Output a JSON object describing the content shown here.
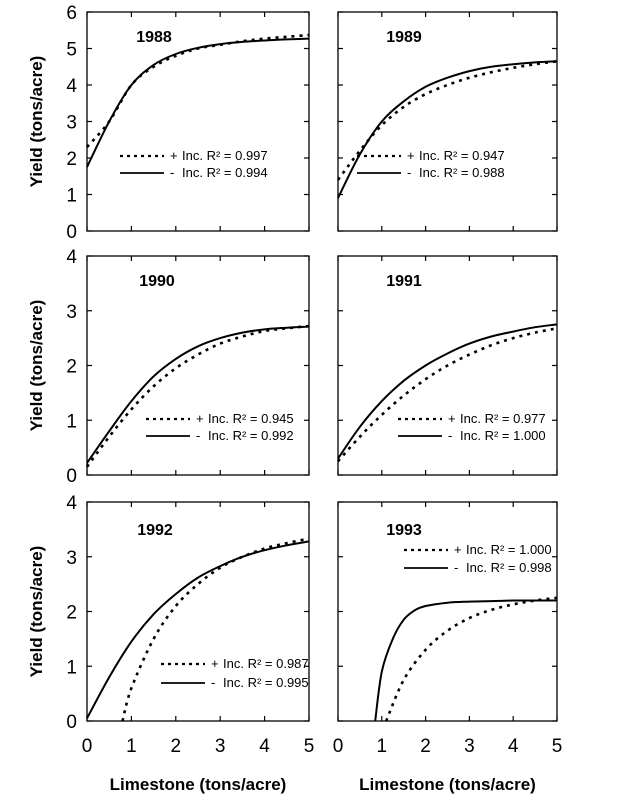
{
  "chart_data": [
    {
      "type": "line",
      "title": "1988",
      "xlim": [
        0,
        5
      ],
      "ylim": [
        0,
        6
      ],
      "xticks": [
        0,
        1,
        2,
        3,
        4,
        5
      ],
      "yticks": [
        0,
        1,
        2,
        3,
        4,
        5,
        6
      ],
      "ylabel": "Yield (tons/acre)",
      "xlabel": "",
      "series": [
        {
          "name": "+ Inc. R² = 0.997",
          "style": "dotted",
          "x": [
            0,
            0.5,
            1,
            1.5,
            2,
            2.5,
            3,
            3.5,
            4,
            4.5,
            5
          ],
          "y": [
            2.3,
            3.0,
            4.0,
            4.5,
            4.8,
            5.0,
            5.1,
            5.2,
            5.27,
            5.32,
            5.37
          ]
        },
        {
          "name": "- Inc. R² = 0.994",
          "style": "solid",
          "x": [
            0,
            0.5,
            1,
            1.5,
            2,
            2.5,
            3,
            3.5,
            4,
            4.5,
            5
          ],
          "y": [
            1.75,
            3.0,
            4.0,
            4.55,
            4.85,
            5.02,
            5.12,
            5.18,
            5.22,
            5.25,
            5.27
          ]
        }
      ],
      "legend": [
        {
          "sym": "+",
          "label": "Inc. R² = 0.997"
        },
        {
          "sym": "-",
          "label": "Inc. R² = 0.994"
        }
      ]
    },
    {
      "type": "line",
      "title": "1989",
      "xlim": [
        0,
        5
      ],
      "ylim": [
        0,
        6
      ],
      "xticks": [
        0,
        1,
        2,
        3,
        4,
        5
      ],
      "yticks": [
        0,
        1,
        2,
        3,
        4,
        5,
        6
      ],
      "ylabel": "",
      "xlabel": "",
      "series": [
        {
          "name": "+ Inc. R² = 0.947",
          "style": "dotted",
          "x": [
            0,
            0.5,
            1,
            1.5,
            2,
            2.5,
            3,
            3.5,
            4,
            4.5,
            5
          ],
          "y": [
            1.4,
            2.2,
            2.9,
            3.4,
            3.75,
            4.0,
            4.2,
            4.35,
            4.47,
            4.57,
            4.65
          ]
        },
        {
          "name": "- Inc. R² = 0.988",
          "style": "solid",
          "x": [
            0,
            0.5,
            1,
            1.5,
            2,
            2.5,
            3,
            3.5,
            4,
            4.5,
            5
          ],
          "y": [
            0.9,
            2.1,
            3.0,
            3.55,
            3.95,
            4.2,
            4.38,
            4.5,
            4.57,
            4.62,
            4.65
          ]
        }
      ],
      "legend": [
        {
          "sym": "+",
          "label": "Inc. R² = 0.947"
        },
        {
          "sym": "-",
          "label": "Inc. R² = 0.988"
        }
      ]
    },
    {
      "type": "line",
      "title": "1990",
      "xlim": [
        0,
        5
      ],
      "ylim": [
        0,
        4
      ],
      "xticks": [
        0,
        1,
        2,
        3,
        4,
        5
      ],
      "yticks": [
        0,
        1,
        2,
        3,
        4
      ],
      "ylabel": "Yield (tons/acre)",
      "xlabel": "",
      "series": [
        {
          "name": "+ Inc. R² = 0.945",
          "style": "dotted",
          "x": [
            0,
            0.5,
            1,
            1.5,
            2,
            2.5,
            3,
            3.5,
            4,
            4.5,
            5
          ],
          "y": [
            0.15,
            0.7,
            1.2,
            1.62,
            1.95,
            2.2,
            2.4,
            2.53,
            2.63,
            2.68,
            2.72
          ]
        },
        {
          "name": "- Inc. R² = 0.992",
          "style": "solid",
          "x": [
            0,
            0.5,
            1,
            1.5,
            2,
            2.5,
            3,
            3.5,
            4,
            4.5,
            5
          ],
          "y": [
            0.22,
            0.8,
            1.35,
            1.8,
            2.12,
            2.35,
            2.5,
            2.6,
            2.66,
            2.69,
            2.71
          ]
        }
      ],
      "legend": [
        {
          "sym": "+",
          "label": "Inc. R² = 0.945"
        },
        {
          "sym": "-",
          "label": "Inc. R² = 0.992"
        }
      ]
    },
    {
      "type": "line",
      "title": "1991",
      "xlim": [
        0,
        5
      ],
      "ylim": [
        0,
        4
      ],
      "xticks": [
        0,
        1,
        2,
        3,
        4,
        5
      ],
      "yticks": [
        0,
        1,
        2,
        3,
        4
      ],
      "ylabel": "",
      "xlabel": "",
      "series": [
        {
          "name": "+ Inc. R² = 0.977",
          "style": "dotted",
          "x": [
            0,
            0.5,
            1,
            1.5,
            2,
            2.5,
            3,
            3.5,
            4,
            4.5,
            5
          ],
          "y": [
            0.25,
            0.7,
            1.1,
            1.45,
            1.75,
            2.0,
            2.2,
            2.37,
            2.5,
            2.6,
            2.68
          ]
        },
        {
          "name": "- Inc. R² = 1.000",
          "style": "solid",
          "x": [
            0,
            0.5,
            1,
            1.5,
            2,
            2.5,
            3,
            3.5,
            4,
            4.5,
            5
          ],
          "y": [
            0.3,
            0.88,
            1.35,
            1.72,
            2.0,
            2.22,
            2.4,
            2.53,
            2.62,
            2.7,
            2.75
          ]
        }
      ],
      "legend": [
        {
          "sym": "+",
          "label": "Inc. R² = 0.977"
        },
        {
          "sym": "-",
          "label": "Inc. R² = 1.000"
        }
      ]
    },
    {
      "type": "line",
      "title": "1992",
      "xlim": [
        0,
        5
      ],
      "ylim": [
        0,
        4
      ],
      "xticks": [
        0,
        1,
        2,
        3,
        4,
        5
      ],
      "yticks": [
        0,
        1,
        2,
        3,
        4
      ],
      "ylabel": "Yield (tons/acre)",
      "xlabel": "Limestone (tons/acre)",
      "series": [
        {
          "name": "+ Inc. R² = 0.987",
          "style": "dotted",
          "x": [
            0.8,
            1.0,
            1.5,
            2.0,
            2.5,
            3.0,
            3.5,
            4.0,
            4.5,
            5.0
          ],
          "y": [
            0.0,
            0.6,
            1.5,
            2.1,
            2.5,
            2.8,
            3.0,
            3.15,
            3.25,
            3.33
          ]
        },
        {
          "name": "- Inc. R² = 0.995",
          "style": "solid",
          "x": [
            0,
            0.5,
            1,
            1.5,
            2,
            2.5,
            3,
            3.5,
            4,
            4.5,
            5
          ],
          "y": [
            0.05,
            0.8,
            1.45,
            1.95,
            2.32,
            2.62,
            2.83,
            3.0,
            3.12,
            3.21,
            3.28
          ]
        }
      ],
      "legend": [
        {
          "sym": "+",
          "label": "Inc. R² = 0.987"
        },
        {
          "sym": "-",
          "label": "Inc. R² = 0.995"
        }
      ]
    },
    {
      "type": "line",
      "title": "1993",
      "xlim": [
        0,
        5
      ],
      "ylim": [
        0,
        4
      ],
      "xticks": [
        0,
        1,
        2,
        3,
        4,
        5
      ],
      "yticks": [
        0,
        1,
        2,
        3,
        4
      ],
      "ylabel": "",
      "xlabel": "Limestone (tons/acre)",
      "series": [
        {
          "name": "+ Inc. R² = 1.000",
          "style": "dotted",
          "x": [
            1.1,
            1.5,
            2.0,
            2.5,
            3.0,
            3.5,
            4.0,
            4.5,
            5.0
          ],
          "y": [
            0.0,
            0.75,
            1.3,
            1.65,
            1.88,
            2.03,
            2.13,
            2.2,
            2.25
          ]
        },
        {
          "name": "- Inc. R² = 0.998",
          "style": "solid",
          "x": [
            0.85,
            1.0,
            1.25,
            1.5,
            1.75,
            2.0,
            2.5,
            3.0,
            3.5,
            4.0,
            4.5,
            5.0
          ],
          "y": [
            0.0,
            0.9,
            1.5,
            1.85,
            2.02,
            2.1,
            2.16,
            2.18,
            2.19,
            2.2,
            2.2,
            2.2
          ]
        }
      ],
      "legend": [
        {
          "sym": "+",
          "label": "Inc. R² = 1.000"
        },
        {
          "sym": "-",
          "label": "Inc. R² = 0.998"
        }
      ]
    }
  ]
}
